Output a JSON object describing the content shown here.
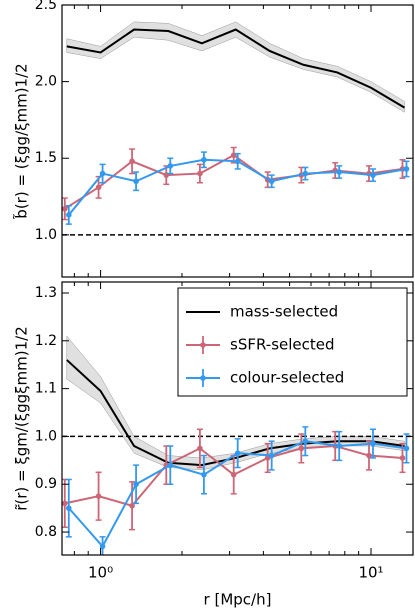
{
  "chart_data": [
    {
      "type": "line",
      "ylabel": "b̃(r) = (ξgg/ξmm)1/2",
      "xscale": "log",
      "xlim": [
        0.72,
        14.3
      ],
      "ylim": [
        0.725,
        2.5
      ],
      "yticks": [
        {
          "value": 1.0,
          "label": "1.0"
        },
        1.5,
        {
          "value": 2.0,
          "label": "2.0"
        },
        2.5
      ],
      "xticks": [
        1,
        10
      ],
      "xminorticks": [
        0.8,
        0.9,
        2,
        3,
        4,
        5,
        6,
        7,
        8,
        9
      ],
      "hline": 1,
      "x": [
        0.75,
        1.0,
        1.33,
        1.78,
        2.37,
        3.16,
        4.22,
        5.62,
        7.5,
        10.0,
        13.3
      ],
      "series": [
        {
          "color": "#000000",
          "values": [
            2.23,
            2.19,
            2.34,
            2.33,
            2.25,
            2.34,
            2.2,
            2.11,
            2.06,
            1.96,
            1.83
          ],
          "lower": [
            2.19,
            2.15,
            2.29,
            2.27,
            2.2,
            2.29,
            2.16,
            2.08,
            2.03,
            1.93,
            1.8
          ],
          "upper": [
            2.28,
            2.23,
            2.39,
            2.38,
            2.3,
            2.39,
            2.25,
            2.15,
            2.1,
            2.0,
            1.87
          ]
        },
        {
          "color": "#cc6677",
          "values": [
            1.17,
            1.31,
            1.48,
            1.39,
            1.4,
            1.52,
            1.36,
            1.39,
            1.42,
            1.4,
            1.43
          ],
          "errors": [
            0.07,
            0.07,
            0.08,
            0.06,
            0.06,
            0.05,
            0.05,
            0.05,
            0.05,
            0.05,
            0.06
          ]
        },
        {
          "color": "#3399ee",
          "values": [
            1.13,
            1.4,
            1.35,
            1.45,
            1.49,
            1.48,
            1.35,
            1.4,
            1.41,
            1.39,
            1.43
          ],
          "errors": [
            0.06,
            0.06,
            0.06,
            0.05,
            0.05,
            0.05,
            0.04,
            0.04,
            0.04,
            0.04,
            0.05
          ]
        }
      ]
    },
    {
      "type": "line",
      "ylabel": "r̃(r) = ξgm/(ξggξmm)1/2",
      "xlabel": "r [Mpc/h]",
      "xscale": "log",
      "xlim": [
        0.72,
        14.3
      ],
      "ylim": [
        0.752,
        1.323
      ],
      "yticks": [
        0.8,
        0.9,
        {
          "value": 1.0,
          "label": "1.0"
        },
        1.1,
        1.2,
        1.3
      ],
      "xticks": [
        {
          "value": 1,
          "label": "10⁰"
        },
        {
          "value": 10,
          "label": "10¹"
        }
      ],
      "xminorticks": [
        0.8,
        0.9,
        2,
        3,
        4,
        5,
        6,
        7,
        8,
        9
      ],
      "hline": 1,
      "legend": "upper right",
      "x": [
        0.75,
        1.0,
        1.33,
        1.78,
        2.37,
        3.16,
        4.22,
        5.62,
        7.5,
        10.0,
        13.3
      ],
      "series": [
        {
          "name": "mass-selected",
          "color": "#000000",
          "values": [
            1.16,
            1.095,
            0.98,
            0.945,
            0.94,
            0.955,
            0.975,
            0.985,
            0.99,
            0.99,
            0.98
          ],
          "lower": [
            1.12,
            1.07,
            0.965,
            0.935,
            0.93,
            0.945,
            0.965,
            0.975,
            0.98,
            0.98,
            0.97
          ],
          "upper": [
            1.21,
            1.125,
            1.0,
            0.96,
            0.955,
            0.965,
            0.985,
            0.995,
            1.0,
            1.0,
            0.99
          ]
        },
        {
          "name": "sSFR-selected",
          "color": "#cc6677",
          "values": [
            0.86,
            0.875,
            0.855,
            0.94,
            0.975,
            0.92,
            0.955,
            0.975,
            0.98,
            0.96,
            0.955
          ],
          "errors": [
            0.05,
            0.05,
            0.05,
            0.04,
            0.04,
            0.04,
            0.03,
            0.03,
            0.03,
            0.03,
            0.03
          ]
        },
        {
          "name": "colour-selected",
          "color": "#3399ee",
          "values": [
            0.85,
            0.77,
            0.9,
            0.94,
            0.92,
            0.965,
            0.96,
            0.99,
            0.98,
            0.985,
            0.975
          ],
          "errors": [
            0.06,
            0.02,
            0.04,
            0.04,
            0.04,
            0.03,
            0.03,
            0.03,
            0.03,
            0.03,
            0.03
          ]
        }
      ]
    }
  ]
}
